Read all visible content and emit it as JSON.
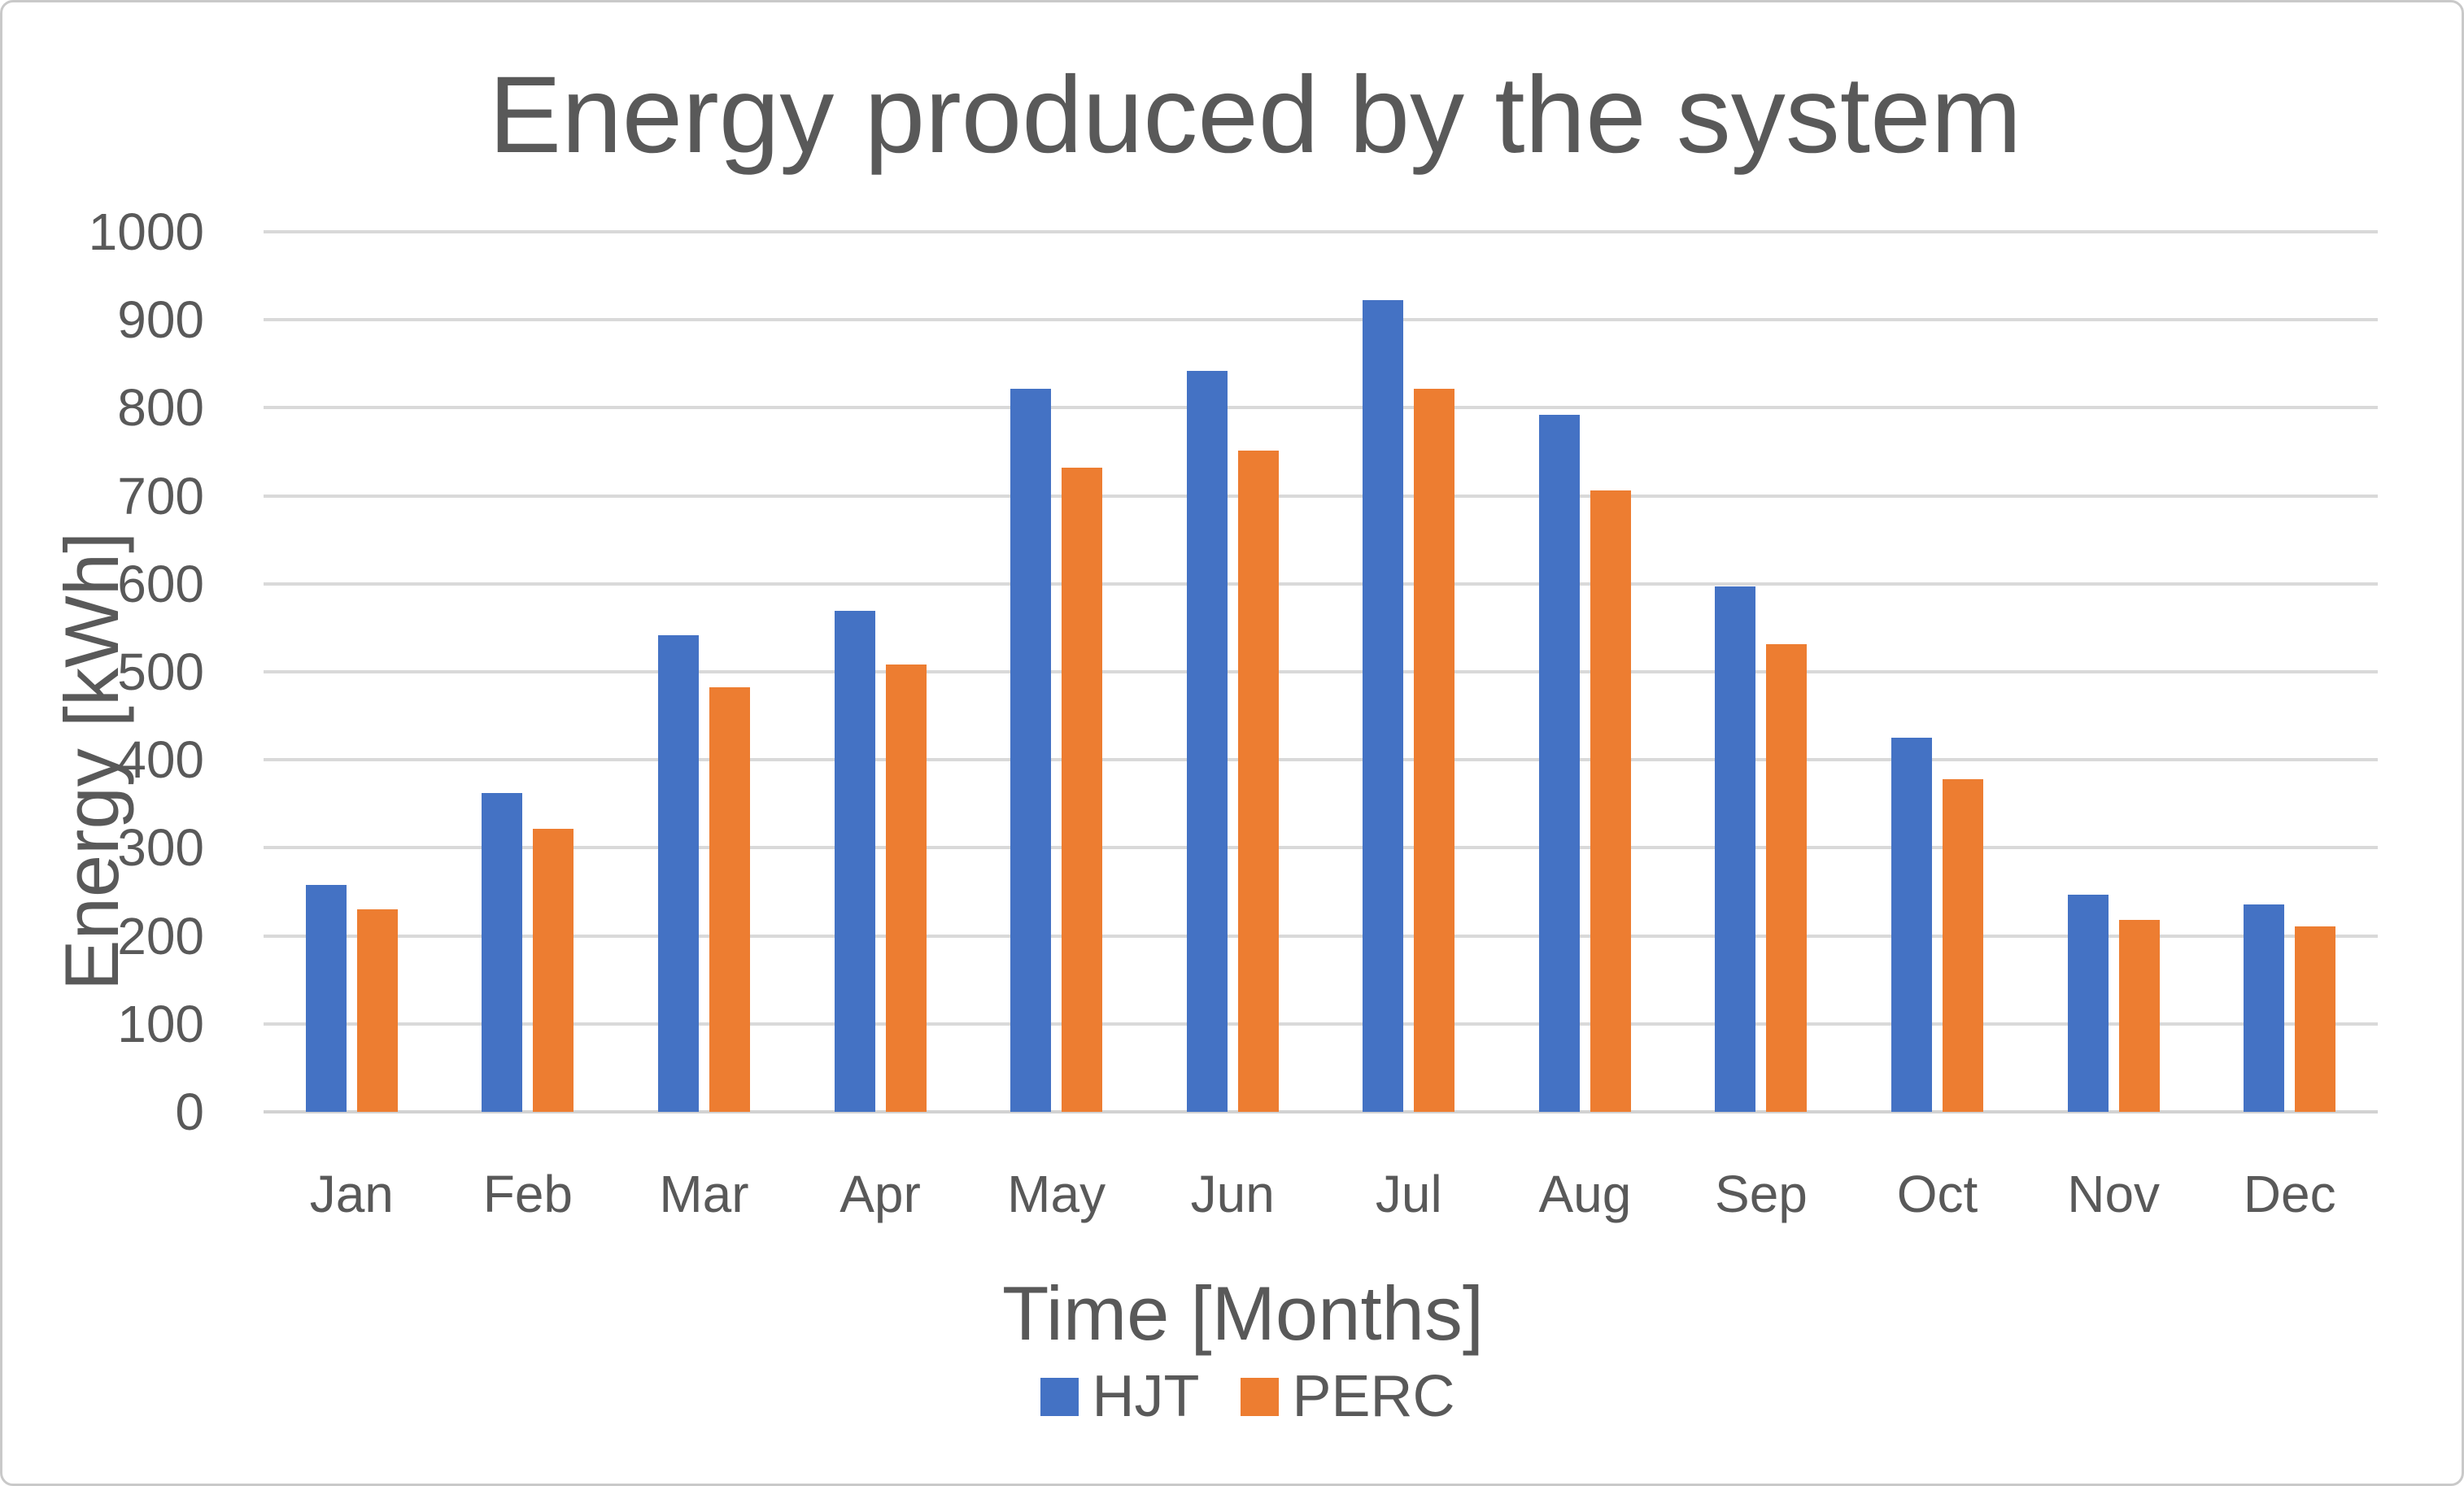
{
  "chart_data": {
    "type": "bar",
    "title": "Energy produced by the system",
    "xlabel": "Time [Months]",
    "ylabel": "Energy [kWh]",
    "categories": [
      "Jan",
      "Feb",
      "Mar",
      "Apr",
      "May",
      "Jun",
      "Jul",
      "Aug",
      "Sep",
      "Oct",
      "Nov",
      "Dec"
    ],
    "series": [
      {
        "name": "HJT",
        "color": "#4472C4",
        "values": [
          258,
          362,
          542,
          569,
          822,
          842,
          922,
          792,
          597,
          425,
          247,
          236
        ]
      },
      {
        "name": "PERC",
        "color": "#ED7D31",
        "values": [
          230,
          322,
          482,
          508,
          732,
          751,
          822,
          706,
          531,
          378,
          218,
          211
        ]
      }
    ],
    "ylim": [
      0,
      1000
    ],
    "ytick_step": 100,
    "yticks": [
      0,
      100,
      200,
      300,
      400,
      500,
      600,
      700,
      800,
      900,
      1000
    ],
    "grid": true,
    "legend_position": "bottom"
  },
  "styles": {
    "text_color": "#595959",
    "grid_color": "#D9D9D9",
    "axis_color": "#D2D2D2",
    "background": "#FFFFFF",
    "border_color": "#C9C9C9",
    "hjt_color": "#4472C4",
    "perc_color": "#ED7D31"
  }
}
